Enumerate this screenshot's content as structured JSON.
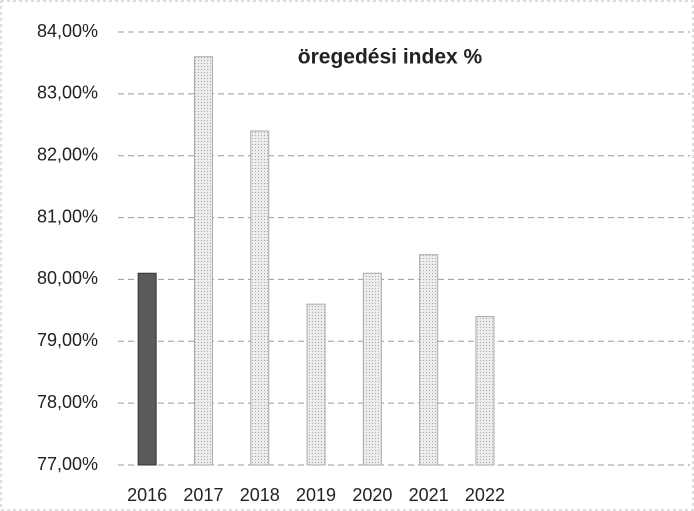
{
  "chart_data": {
    "type": "bar",
    "title": "öregedési index %",
    "categories": [
      "2016",
      "2017",
      "2018",
      "2019",
      "2020",
      "2021",
      "2022"
    ],
    "values": [
      80.1,
      83.6,
      82.4,
      79.6,
      80.1,
      80.4,
      79.4
    ],
    "colors": [
      "#5a5a5a",
      "#e2e2e2",
      "#e2e2e2",
      "#e2e2e2",
      "#e2e2e2",
      "#e2e2e2",
      "#e2e2e2"
    ],
    "ylim": [
      77,
      84
    ],
    "yticks": [
      {
        "value": 77,
        "label": "77,00%"
      },
      {
        "value": 78,
        "label": "78,00%"
      },
      {
        "value": 79,
        "label": "79,00%"
      },
      {
        "value": 80,
        "label": "80,00%"
      },
      {
        "value": 81,
        "label": "81,00%"
      },
      {
        "value": 82,
        "label": "82,00%"
      },
      {
        "value": 83,
        "label": "83,00%"
      },
      {
        "value": 84,
        "label": "84,00%"
      }
    ],
    "grid": true
  }
}
